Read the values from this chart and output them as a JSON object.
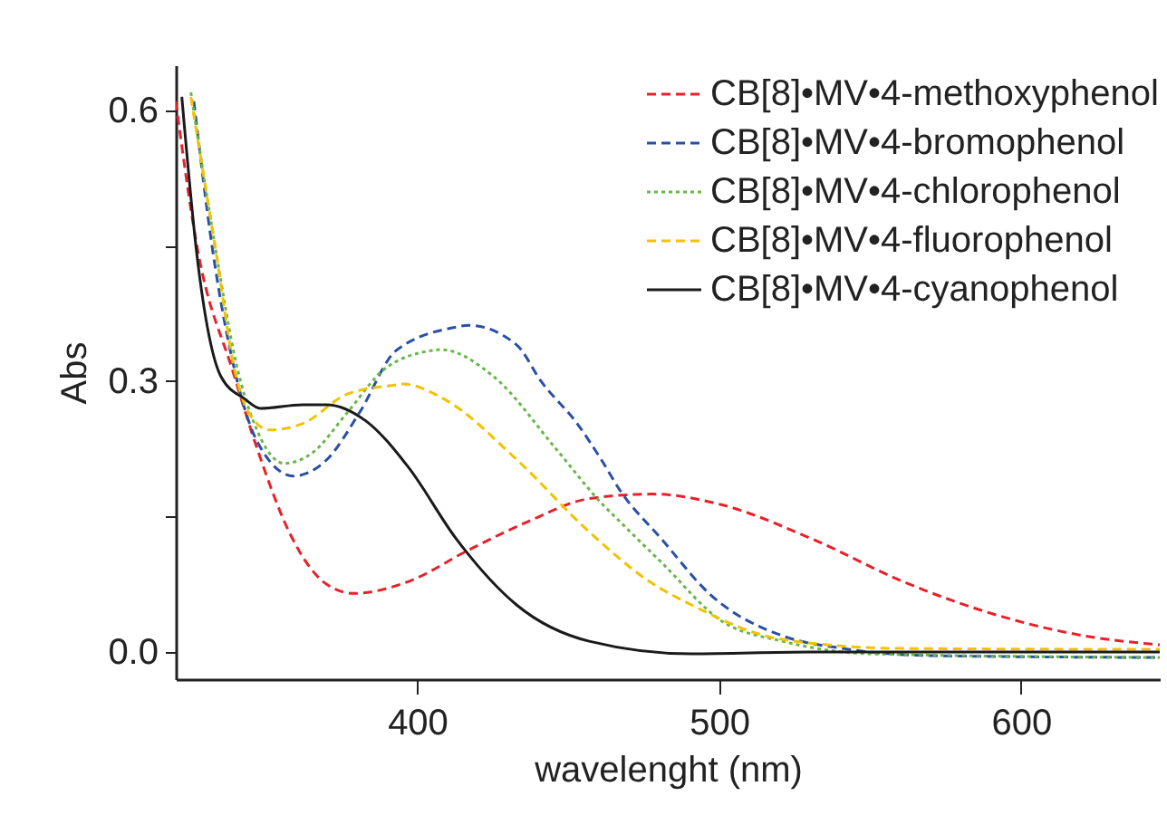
{
  "chart_data": {
    "type": "line",
    "xlabel": "wavelenght (nm)",
    "ylabel": "Abs",
    "xlim": [
      320,
      646
    ],
    "ylim": [
      -0.03,
      0.65
    ],
    "xticks": [
      400,
      500,
      600
    ],
    "yticks": [
      {
        "value": 0,
        "label": "0.0"
      },
      {
        "value": 0.15,
        "label": null
      },
      0.3,
      {
        "value": 0.45,
        "label": null
      },
      0.6
    ],
    "grid": false,
    "legend": "top right",
    "marker": "none",
    "series": [
      {
        "name": "CB[8]•MV•4-methoxyphenol",
        "color": "#e8202a",
        "line_style": "dashed",
        "x": [
          320,
          327,
          339,
          347,
          358,
          370,
          379,
          397,
          417,
          437,
          457,
          478,
          501,
          531,
          561,
          591,
          621,
          646
        ],
        "values": [
          0.61,
          0.45,
          0.31,
          0.225,
          0.13,
          0.075,
          0.065,
          0.078,
          0.113,
          0.145,
          0.17,
          0.175,
          0.163,
          0.125,
          0.078,
          0.042,
          0.018,
          0.008
        ]
      },
      {
        "name": "CB[8]•MV•4-bromophenol",
        "color": "#2a4fa8",
        "line_style": "dashed",
        "x": [
          326,
          332,
          340,
          347,
          359,
          370,
          381,
          393,
          413,
          417,
          433,
          441,
          453,
          461,
          467,
          481,
          497,
          521,
          541,
          571,
          646
        ],
        "values": [
          0.61,
          0.45,
          0.305,
          0.233,
          0.195,
          0.213,
          0.266,
          0.334,
          0.36,
          0.362,
          0.34,
          0.3,
          0.253,
          0.213,
          0.18,
          0.125,
          0.064,
          0.018,
          0.004,
          -0.004,
          -0.006
        ]
      },
      {
        "name": "CB[8]•MV•4-chlorophenol",
        "color": "#6ab64a",
        "line_style": "dotted",
        "x": [
          325,
          333,
          340,
          347,
          356,
          365,
          377,
          389,
          405,
          408,
          425,
          446,
          461,
          467,
          481,
          501,
          521,
          551,
          646
        ],
        "values": [
          0.62,
          0.45,
          0.32,
          0.245,
          0.209,
          0.22,
          0.266,
          0.313,
          0.334,
          0.335,
          0.306,
          0.225,
          0.165,
          0.145,
          0.099,
          0.034,
          0.012,
          -0.002,
          -0.006
        ]
      },
      {
        "name": "CB[8]•MV•4-fluorophenol",
        "color": "#f2c200",
        "line_style": "dashed",
        "x": [
          325,
          333,
          340,
          344,
          351,
          362,
          377,
          393,
          395,
          409,
          433,
          457,
          477,
          491,
          521,
          561,
          646
        ],
        "values": [
          0.615,
          0.45,
          0.305,
          0.266,
          0.246,
          0.253,
          0.286,
          0.296,
          0.297,
          0.28,
          0.213,
          0.133,
          0.078,
          0.052,
          0.014,
          0.004,
          0.003
        ]
      },
      {
        "name": "CB[8]•MV•4-cyanophenol",
        "color": "#1a1a1a",
        "line_style": "solid",
        "x": [
          322,
          327,
          335,
          343,
          348,
          362,
          370,
          383,
          397,
          413,
          433,
          457,
          491,
          530,
          646
        ],
        "values": [
          0.615,
          0.44,
          0.305,
          0.28,
          0.27,
          0.274,
          0.274,
          0.256,
          0.205,
          0.125,
          0.052,
          0.012,
          -0.002,
          0.0,
          0.0
        ]
      }
    ]
  }
}
